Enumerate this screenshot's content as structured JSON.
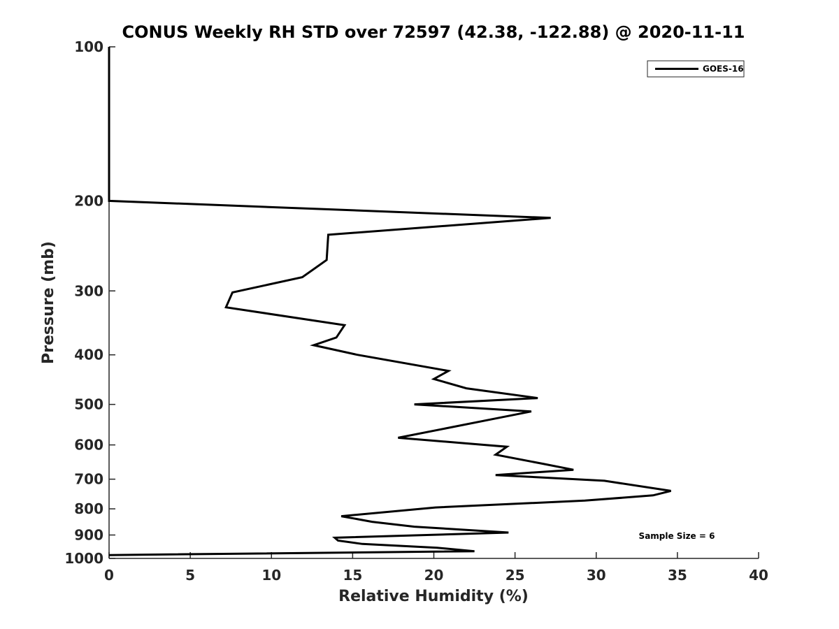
{
  "chart_data": {
    "type": "line",
    "title": "CONUS Weekly RH STD over 72597 (42.38, -122.88) @ 2020-11-11",
    "xlabel": "Relative Humidity (%)",
    "ylabel": "Pressure (mb)",
    "xlim": [
      0,
      40
    ],
    "ylim": [
      100,
      1000
    ],
    "y_scale": "log",
    "y_reversed": true,
    "x_ticks": [
      0,
      5,
      10,
      15,
      20,
      25,
      30,
      35,
      40
    ],
    "x_tick_labels": [
      "0",
      "5",
      "10",
      "15",
      "20",
      "25",
      "30",
      "35",
      "40"
    ],
    "y_ticks": [
      100,
      200,
      300,
      400,
      500,
      600,
      700,
      800,
      900,
      1000
    ],
    "y_tick_labels": [
      "100",
      "200",
      "300",
      "400",
      "500",
      "600",
      "700",
      "800",
      "900",
      "1000"
    ],
    "grid": false,
    "legend_position": "top-right",
    "annotation": "Sample Size = 6",
    "series": [
      {
        "name": "GOES-16",
        "color": "#000000",
        "points": [
          [
            0,
            100
          ],
          [
            0,
            150
          ],
          [
            0,
            200
          ],
          [
            27.2,
            216
          ],
          [
            13.5,
            233
          ],
          [
            13.4,
            261
          ],
          [
            11.9,
            282
          ],
          [
            7.6,
            302
          ],
          [
            7.2,
            323
          ],
          [
            14.5,
            350
          ],
          [
            14.0,
            370
          ],
          [
            12.6,
            383
          ],
          [
            15.3,
            400
          ],
          [
            20.9,
            430
          ],
          [
            20.0,
            446
          ],
          [
            22.0,
            465
          ],
          [
            26.4,
            486
          ],
          [
            18.8,
            500
          ],
          [
            26.0,
            516
          ],
          [
            23.5,
            535
          ],
          [
            17.8,
            581
          ],
          [
            24.5,
            605
          ],
          [
            23.8,
            627
          ],
          [
            26.7,
            653
          ],
          [
            28.6,
            671
          ],
          [
            23.8,
            687
          ],
          [
            30.5,
            705
          ],
          [
            34.6,
            738
          ],
          [
            33.5,
            753
          ],
          [
            29.3,
            771
          ],
          [
            20.1,
            795
          ],
          [
            14.3,
            827
          ],
          [
            16.2,
            848
          ],
          [
            18.8,
            867
          ],
          [
            24.6,
            890
          ],
          [
            13.9,
            911
          ],
          [
            14.1,
            923
          ],
          [
            15.6,
            937
          ],
          [
            20.2,
            953
          ],
          [
            22.5,
            968
          ],
          [
            0,
            985
          ]
        ]
      }
    ]
  }
}
